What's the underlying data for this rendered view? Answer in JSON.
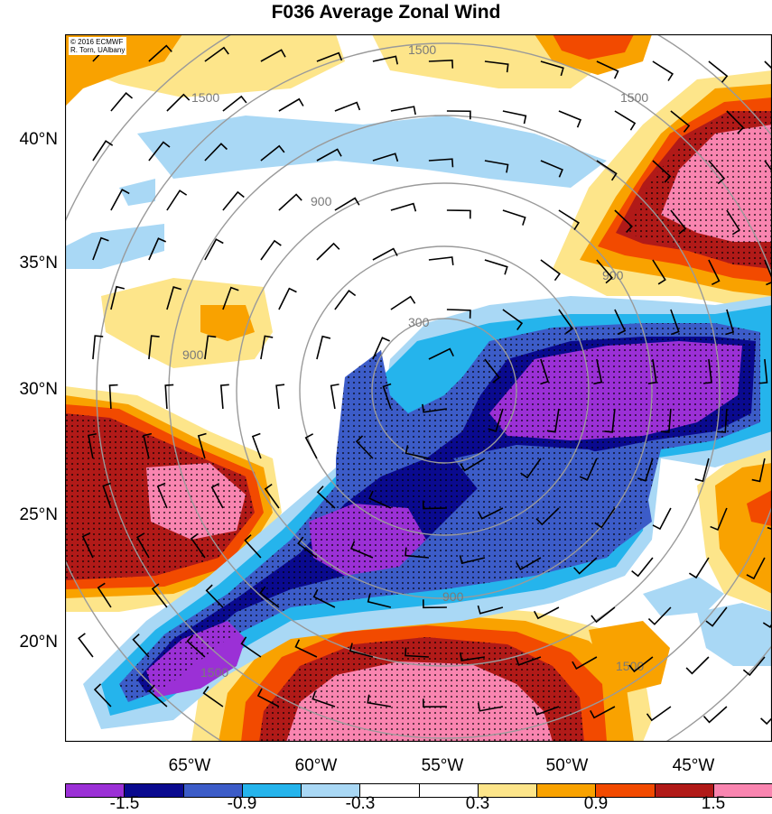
{
  "title": "F036 Average Zonal Wind",
  "credit": [
    "© 2016 ECMWF",
    "R. Torn, UAlbany"
  ],
  "lat_labels": [
    "40°N",
    "35°N",
    "30°N",
    "25°N",
    "20°N"
  ],
  "lon_labels": [
    "65°W",
    "60°W",
    "55°W",
    "50°W",
    "45°W"
  ],
  "contour_labels": [
    "300",
    "900",
    "1500"
  ],
  "colorbar": {
    "colors": [
      "#9b30d6",
      "#0a0a8f",
      "#3c5cc8",
      "#25b4ec",
      "#a9d8f5",
      "#ffffff",
      "#ffffff",
      "#fde58a",
      "#f9a200",
      "#f24a00",
      "#b11a18",
      "#f985b0"
    ],
    "labels": [
      "-1.5",
      "-0.9",
      "-0.3",
      "0.3",
      "0.9",
      "1.5"
    ]
  },
  "fill_colors": {
    "purple": "#9b30d6",
    "navy": "#0a0a8f",
    "blue": "#3c5cc8",
    "cyan": "#25b4ec",
    "lightblue": "#a9d8f5",
    "yellow": "#fde58a",
    "orange": "#f9a200",
    "redorange": "#f24a00",
    "darkred": "#b11a18",
    "pink": "#f985b0"
  }
}
